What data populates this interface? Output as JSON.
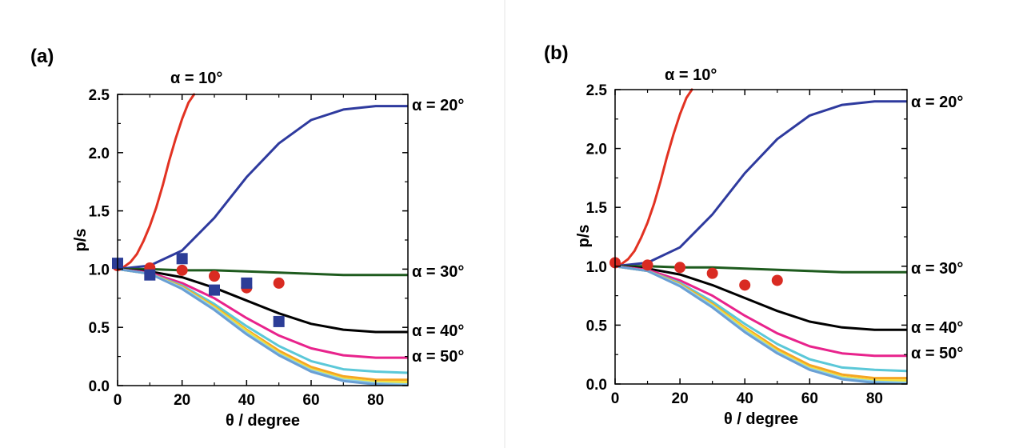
{
  "chart_data": [
    {
      "type": "line",
      "panel_label": "(a)",
      "xlabel": "θ / degree",
      "ylabel": "p/s",
      "xlim": [
        0,
        90
      ],
      "ylim": [
        0,
        2.5
      ],
      "x_ticks": [
        0,
        20,
        40,
        60,
        80
      ],
      "y_ticks": [
        "0.0",
        "0.5",
        "1.0",
        "1.5",
        "2.0",
        "2.5"
      ],
      "annotations": [
        "α = 10°",
        "α = 20°",
        "α = 30°",
        "α = 40°",
        "α = 50°"
      ],
      "series": [
        {
          "color": "#e23222",
          "x": [
            0,
            2,
            4,
            6,
            8,
            10,
            12,
            14,
            16,
            18,
            20,
            22,
            23.7
          ],
          "y": [
            1.0,
            1.02,
            1.06,
            1.13,
            1.24,
            1.37,
            1.53,
            1.72,
            1.93,
            2.12,
            2.29,
            2.43,
            2.5
          ]
        },
        {
          "color": "#2e3a9e",
          "x": [
            0,
            10,
            20,
            30,
            40,
            50,
            60,
            70,
            80,
            90
          ],
          "y": [
            1.0,
            1.03,
            1.16,
            1.44,
            1.79,
            2.08,
            2.28,
            2.37,
            2.4,
            2.4
          ]
        },
        {
          "color": "#1e5b1e",
          "x": [
            0,
            10,
            20,
            30,
            40,
            50,
            60,
            70,
            80,
            90
          ],
          "y": [
            1.0,
            1.0,
            0.99,
            0.99,
            0.98,
            0.97,
            0.96,
            0.95,
            0.95,
            0.95
          ]
        },
        {
          "color": "#000000",
          "x": [
            0,
            10,
            20,
            30,
            40,
            50,
            60,
            70,
            80,
            90
          ],
          "y": [
            1.0,
            0.98,
            0.93,
            0.84,
            0.73,
            0.62,
            0.53,
            0.48,
            0.46,
            0.46
          ]
        },
        {
          "color": "#e8238c",
          "x": [
            0,
            10,
            20,
            30,
            40,
            50,
            60,
            70,
            80,
            90
          ],
          "y": [
            1.0,
            0.97,
            0.88,
            0.75,
            0.58,
            0.43,
            0.32,
            0.26,
            0.24,
            0.24
          ]
        },
        {
          "color": "#5bc8d8",
          "x": [
            0,
            10,
            20,
            30,
            40,
            50,
            60,
            70,
            80,
            90
          ],
          "y": [
            1.0,
            0.96,
            0.86,
            0.7,
            0.51,
            0.34,
            0.21,
            0.14,
            0.12,
            0.11
          ]
        },
        {
          "color": "#f5a623",
          "x": [
            0,
            10,
            20,
            30,
            40,
            50,
            60,
            70,
            80,
            90
          ],
          "y": [
            1.0,
            0.96,
            0.85,
            0.68,
            0.48,
            0.3,
            0.16,
            0.08,
            0.05,
            0.05
          ]
        },
        {
          "color": "#f4e03a",
          "x": [
            0,
            10,
            20,
            30,
            40,
            50,
            60,
            70,
            80,
            90
          ],
          "y": [
            1.0,
            0.96,
            0.84,
            0.67,
            0.47,
            0.28,
            0.14,
            0.06,
            0.03,
            0.03
          ]
        },
        {
          "color": "#8fd3e8",
          "x": [
            0,
            10,
            20,
            30,
            40,
            50,
            60,
            70,
            80,
            90
          ],
          "y": [
            1.0,
            0.96,
            0.84,
            0.66,
            0.45,
            0.27,
            0.13,
            0.05,
            0.02,
            0.01
          ]
        },
        {
          "color": "#6a9fd4",
          "x": [
            0,
            10,
            20,
            30,
            40,
            50,
            60,
            70,
            80,
            90
          ],
          "y": [
            1.0,
            0.96,
            0.83,
            0.65,
            0.44,
            0.26,
            0.12,
            0.04,
            0.01,
            0.0
          ]
        }
      ],
      "markers": [
        {
          "shape": "circle",
          "color": "#d92b22",
          "x": [
            0,
            10,
            20,
            30,
            40,
            50
          ],
          "y": [
            1.03,
            1.01,
            0.99,
            0.94,
            0.84,
            0.88
          ]
        },
        {
          "shape": "square",
          "color": "#2c3d97",
          "x": [
            0,
            10,
            20,
            30,
            40,
            50
          ],
          "y": [
            1.05,
            0.95,
            1.09,
            0.82,
            0.88,
            0.55
          ]
        }
      ]
    },
    {
      "type": "line",
      "panel_label": "(b)",
      "xlabel": "θ / degree",
      "ylabel": "p/s",
      "xlim": [
        0,
        90
      ],
      "ylim": [
        0,
        2.5
      ],
      "x_ticks": [
        0,
        20,
        40,
        60,
        80
      ],
      "y_ticks": [
        "0.0",
        "0.5",
        "1.0",
        "1.5",
        "2.0",
        "2.5"
      ],
      "annotations": [
        "α = 10°",
        "α = 20°",
        "α = 30°",
        "α = 40°",
        "α = 50°"
      ],
      "series": [
        {
          "color": "#e23222",
          "x": [
            0,
            2,
            4,
            6,
            8,
            10,
            12,
            14,
            16,
            18,
            20,
            22,
            23.7
          ],
          "y": [
            1.0,
            1.02,
            1.06,
            1.13,
            1.24,
            1.37,
            1.53,
            1.72,
            1.93,
            2.12,
            2.29,
            2.43,
            2.5
          ]
        },
        {
          "color": "#2e3a9e",
          "x": [
            0,
            10,
            20,
            30,
            40,
            50,
            60,
            70,
            80,
            90
          ],
          "y": [
            1.0,
            1.03,
            1.16,
            1.44,
            1.79,
            2.08,
            2.28,
            2.37,
            2.4,
            2.4
          ]
        },
        {
          "color": "#1e5b1e",
          "x": [
            0,
            10,
            20,
            30,
            40,
            50,
            60,
            70,
            80,
            90
          ],
          "y": [
            1.0,
            1.0,
            0.99,
            0.99,
            0.98,
            0.97,
            0.96,
            0.95,
            0.95,
            0.95
          ]
        },
        {
          "color": "#000000",
          "x": [
            0,
            10,
            20,
            30,
            40,
            50,
            60,
            70,
            80,
            90
          ],
          "y": [
            1.0,
            0.98,
            0.93,
            0.84,
            0.73,
            0.62,
            0.53,
            0.48,
            0.46,
            0.46
          ]
        },
        {
          "color": "#e8238c",
          "x": [
            0,
            10,
            20,
            30,
            40,
            50,
            60,
            70,
            80,
            90
          ],
          "y": [
            1.0,
            0.97,
            0.88,
            0.75,
            0.58,
            0.43,
            0.32,
            0.26,
            0.24,
            0.24
          ]
        },
        {
          "color": "#5bc8d8",
          "x": [
            0,
            10,
            20,
            30,
            40,
            50,
            60,
            70,
            80,
            90
          ],
          "y": [
            1.0,
            0.96,
            0.86,
            0.7,
            0.51,
            0.34,
            0.21,
            0.14,
            0.12,
            0.11
          ]
        },
        {
          "color": "#f5a623",
          "x": [
            0,
            10,
            20,
            30,
            40,
            50,
            60,
            70,
            80,
            90
          ],
          "y": [
            1.0,
            0.96,
            0.85,
            0.68,
            0.48,
            0.3,
            0.16,
            0.08,
            0.05,
            0.05
          ]
        },
        {
          "color": "#f4e03a",
          "x": [
            0,
            10,
            20,
            30,
            40,
            50,
            60,
            70,
            80,
            90
          ],
          "y": [
            1.0,
            0.96,
            0.84,
            0.67,
            0.47,
            0.28,
            0.14,
            0.06,
            0.03,
            0.03
          ]
        },
        {
          "color": "#8fd3e8",
          "x": [
            0,
            10,
            20,
            30,
            40,
            50,
            60,
            70,
            80,
            90
          ],
          "y": [
            1.0,
            0.96,
            0.84,
            0.66,
            0.45,
            0.27,
            0.13,
            0.05,
            0.02,
            0.01
          ]
        },
        {
          "color": "#6a9fd4",
          "x": [
            0,
            10,
            20,
            30,
            40,
            50,
            60,
            70,
            80,
            90
          ],
          "y": [
            1.0,
            0.96,
            0.83,
            0.65,
            0.44,
            0.26,
            0.12,
            0.04,
            0.01,
            0.0
          ]
        }
      ],
      "markers": [
        {
          "shape": "circle",
          "color": "#d92b22",
          "x": [
            0,
            10,
            20,
            30,
            40,
            50
          ],
          "y": [
            1.03,
            1.01,
            0.99,
            0.94,
            0.84,
            0.88
          ]
        }
      ]
    }
  ]
}
